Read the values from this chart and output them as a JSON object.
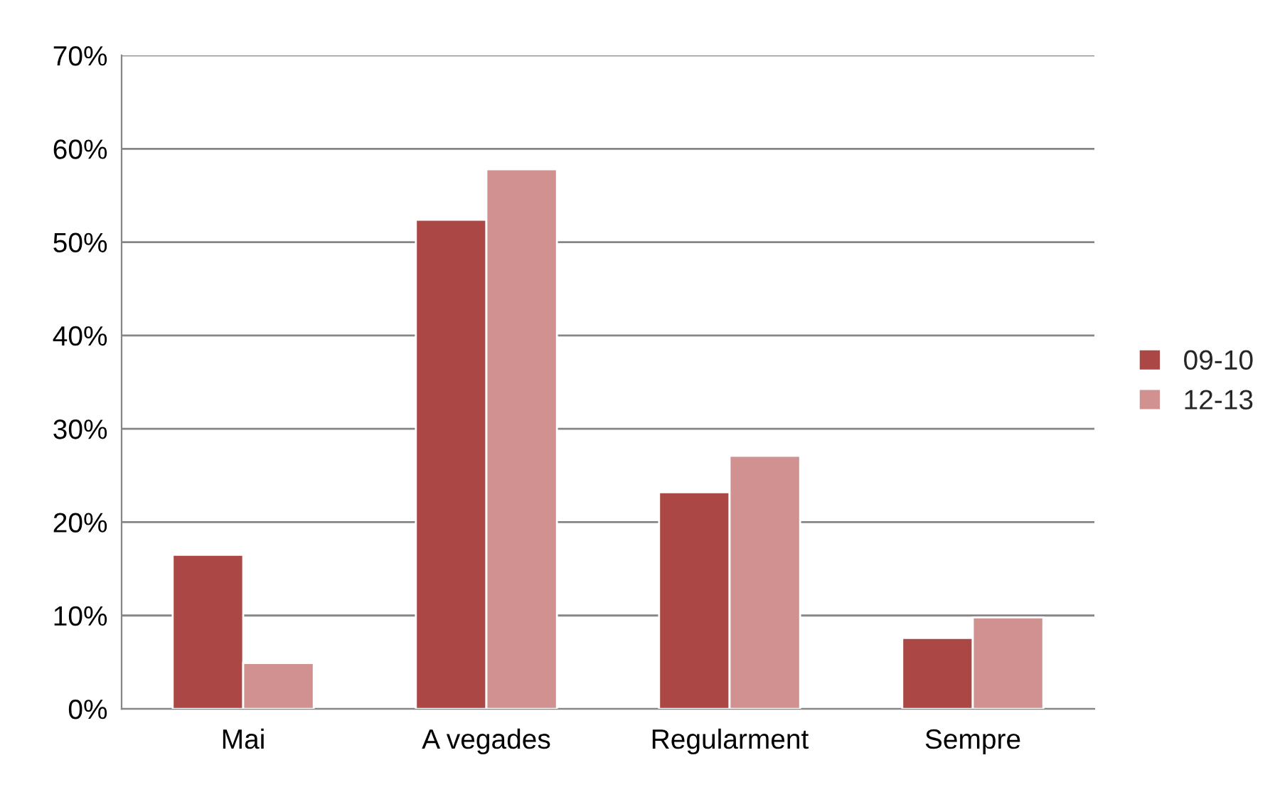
{
  "chart_data": {
    "type": "bar",
    "categories": [
      "Mai",
      "A vegades",
      "Regularment",
      "Sempre"
    ],
    "series": [
      {
        "name": "09-10",
        "color": "#ab4744",
        "values": [
          16.5,
          52.4,
          23.2,
          7.6
        ]
      },
      {
        "name": "12-13",
        "color": "#d19190",
        "values": [
          4.9,
          57.8,
          27.1,
          9.8
        ]
      }
    ],
    "ylim": [
      0,
      70
    ],
    "yticks": [
      {
        "value": 0,
        "label": "0%"
      },
      {
        "value": 10,
        "label": "10%"
      },
      {
        "value": 20,
        "label": "20%"
      },
      {
        "value": 30,
        "label": "30%"
      },
      {
        "value": 40,
        "label": "40%"
      },
      {
        "value": 50,
        "label": "50%"
      },
      {
        "value": 60,
        "label": "60%"
      },
      {
        "value": 70,
        "label": "70%"
      }
    ],
    "grid": "y",
    "legend": "right"
  }
}
